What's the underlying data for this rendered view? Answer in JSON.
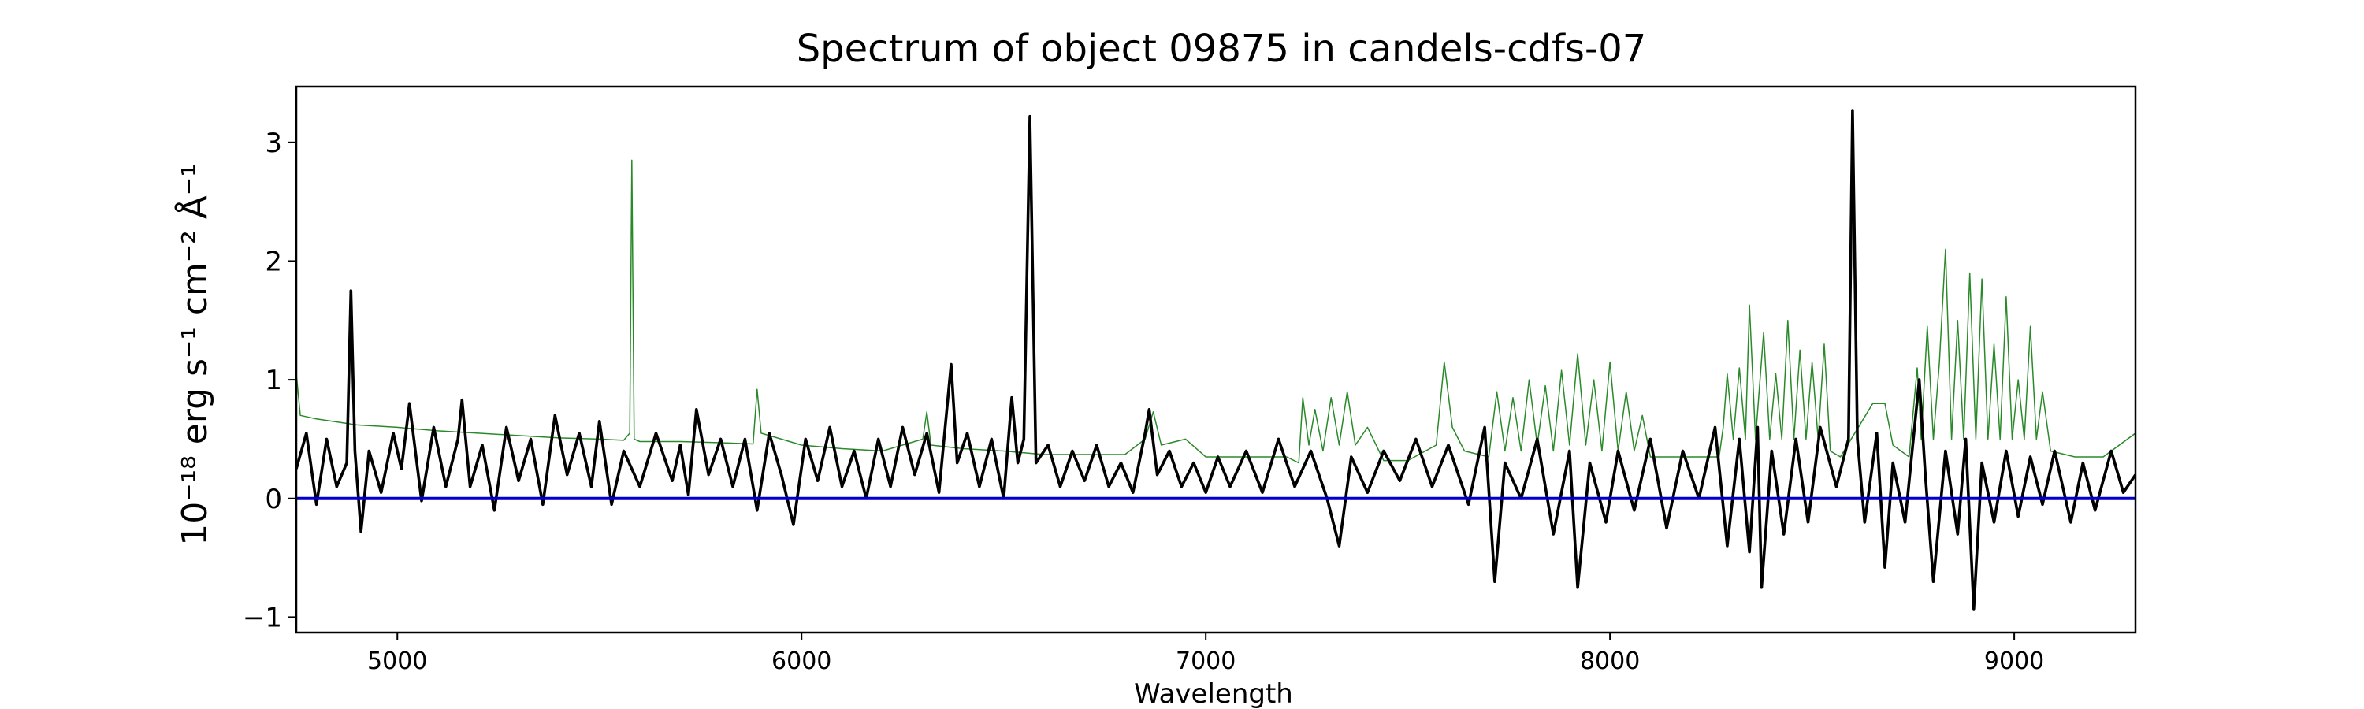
{
  "chart_data": {
    "type": "line",
    "title": "Spectrum of object 09875 in candels-cdfs-07",
    "xlabel": "Wavelength",
    "ylabel": "10⁻¹⁸ erg s⁻¹ cm⁻² Å⁻¹",
    "xlim": [
      4750,
      9300
    ],
    "ylim": [
      -1.13,
      3.47
    ],
    "x_ticks": [
      5000,
      6000,
      7000,
      8000,
      9000
    ],
    "y_ticks": [
      -1,
      0,
      1,
      2,
      3
    ],
    "grid": false,
    "legend": "none",
    "series": [
      {
        "color": "#000000",
        "points": [
          [
            4750,
            0.25
          ],
          [
            4775,
            0.55
          ],
          [
            4800,
            -0.05
          ],
          [
            4825,
            0.5
          ],
          [
            4850,
            0.1
          ],
          [
            4875,
            0.3
          ],
          [
            4885,
            1.75
          ],
          [
            4895,
            0.4
          ],
          [
            4910,
            -0.28
          ],
          [
            4930,
            0.4
          ],
          [
            4960,
            0.05
          ],
          [
            4990,
            0.55
          ],
          [
            5010,
            0.25
          ],
          [
            5030,
            0.8
          ],
          [
            5060,
            -0.02
          ],
          [
            5090,
            0.6
          ],
          [
            5120,
            0.1
          ],
          [
            5150,
            0.5
          ],
          [
            5160,
            0.83
          ],
          [
            5180,
            0.1
          ],
          [
            5210,
            0.45
          ],
          [
            5240,
            -0.1
          ],
          [
            5270,
            0.6
          ],
          [
            5300,
            0.15
          ],
          [
            5330,
            0.5
          ],
          [
            5360,
            -0.05
          ],
          [
            5390,
            0.7
          ],
          [
            5420,
            0.2
          ],
          [
            5450,
            0.55
          ],
          [
            5480,
            0.1
          ],
          [
            5500,
            0.65
          ],
          [
            5530,
            -0.05
          ],
          [
            5560,
            0.4
          ],
          [
            5600,
            0.1
          ],
          [
            5640,
            0.55
          ],
          [
            5680,
            0.15
          ],
          [
            5700,
            0.45
          ],
          [
            5720,
            0.03
          ],
          [
            5740,
            0.75
          ],
          [
            5770,
            0.2
          ],
          [
            5800,
            0.5
          ],
          [
            5830,
            0.1
          ],
          [
            5860,
            0.5
          ],
          [
            5890,
            -0.1
          ],
          [
            5920,
            0.55
          ],
          [
            5950,
            0.2
          ],
          [
            5980,
            -0.22
          ],
          [
            6010,
            0.5
          ],
          [
            6040,
            0.15
          ],
          [
            6070,
            0.6
          ],
          [
            6100,
            0.1
          ],
          [
            6130,
            0.4
          ],
          [
            6160,
            0.0
          ],
          [
            6190,
            0.5
          ],
          [
            6220,
            0.1
          ],
          [
            6250,
            0.6
          ],
          [
            6280,
            0.2
          ],
          [
            6310,
            0.55
          ],
          [
            6340,
            0.05
          ],
          [
            6370,
            1.13
          ],
          [
            6385,
            0.3
          ],
          [
            6410,
            0.55
          ],
          [
            6440,
            0.1
          ],
          [
            6470,
            0.5
          ],
          [
            6500,
            0.0
          ],
          [
            6520,
            0.85
          ],
          [
            6535,
            0.3
          ],
          [
            6550,
            0.5
          ],
          [
            6565,
            3.22
          ],
          [
            6580,
            0.3
          ],
          [
            6610,
            0.45
          ],
          [
            6640,
            0.1
          ],
          [
            6670,
            0.4
          ],
          [
            6700,
            0.15
          ],
          [
            6730,
            0.45
          ],
          [
            6760,
            0.1
          ],
          [
            6790,
            0.3
          ],
          [
            6820,
            0.05
          ],
          [
            6850,
            0.55
          ],
          [
            6860,
            0.75
          ],
          [
            6880,
            0.2
          ],
          [
            6910,
            0.4
          ],
          [
            6940,
            0.1
          ],
          [
            6970,
            0.3
          ],
          [
            7000,
            0.05
          ],
          [
            7030,
            0.35
          ],
          [
            7060,
            0.1
          ],
          [
            7100,
            0.4
          ],
          [
            7140,
            0.05
          ],
          [
            7180,
            0.5
          ],
          [
            7220,
            0.1
          ],
          [
            7260,
            0.4
          ],
          [
            7300,
            0.0
          ],
          [
            7330,
            -0.4
          ],
          [
            7360,
            0.35
          ],
          [
            7400,
            0.05
          ],
          [
            7440,
            0.4
          ],
          [
            7480,
            0.15
          ],
          [
            7520,
            0.5
          ],
          [
            7560,
            0.1
          ],
          [
            7600,
            0.45
          ],
          [
            7650,
            -0.05
          ],
          [
            7690,
            0.6
          ],
          [
            7715,
            -0.7
          ],
          [
            7740,
            0.3
          ],
          [
            7780,
            0.0
          ],
          [
            7820,
            0.5
          ],
          [
            7860,
            -0.3
          ],
          [
            7900,
            0.4
          ],
          [
            7920,
            -0.75
          ],
          [
            7950,
            0.3
          ],
          [
            7990,
            -0.2
          ],
          [
            8020,
            0.4
          ],
          [
            8060,
            -0.1
          ],
          [
            8100,
            0.5
          ],
          [
            8140,
            -0.25
          ],
          [
            8180,
            0.4
          ],
          [
            8220,
            0.0
          ],
          [
            8260,
            0.6
          ],
          [
            8290,
            -0.4
          ],
          [
            8320,
            0.5
          ],
          [
            8345,
            -0.45
          ],
          [
            8365,
            0.6
          ],
          [
            8375,
            -0.75
          ],
          [
            8400,
            0.4
          ],
          [
            8430,
            -0.3
          ],
          [
            8460,
            0.5
          ],
          [
            8490,
            -0.2
          ],
          [
            8520,
            0.6
          ],
          [
            8560,
            0.1
          ],
          [
            8590,
            0.5
          ],
          [
            8600,
            3.27
          ],
          [
            8612,
            0.5
          ],
          [
            8630,
            -0.2
          ],
          [
            8660,
            0.55
          ],
          [
            8680,
            -0.58
          ],
          [
            8700,
            0.3
          ],
          [
            8730,
            -0.2
          ],
          [
            8765,
            1.0
          ],
          [
            8780,
            0.2
          ],
          [
            8800,
            -0.7
          ],
          [
            8830,
            0.4
          ],
          [
            8860,
            -0.3
          ],
          [
            8880,
            0.5
          ],
          [
            8900,
            -0.93
          ],
          [
            8920,
            0.3
          ],
          [
            8950,
            -0.2
          ],
          [
            8980,
            0.4
          ],
          [
            9010,
            -0.15
          ],
          [
            9040,
            0.35
          ],
          [
            9070,
            -0.05
          ],
          [
            9100,
            0.4
          ],
          [
            9140,
            -0.2
          ],
          [
            9170,
            0.3
          ],
          [
            9200,
            -0.1
          ],
          [
            9240,
            0.4
          ],
          [
            9270,
            0.05
          ],
          [
            9300,
            0.2
          ]
        ]
      },
      {
        "color": "#2a8a2a",
        "points": [
          [
            4750,
            1.05
          ],
          [
            4760,
            0.7
          ],
          [
            4800,
            0.67
          ],
          [
            4900,
            0.62
          ],
          [
            5000,
            0.6
          ],
          [
            5100,
            0.57
          ],
          [
            5200,
            0.55
          ],
          [
            5300,
            0.53
          ],
          [
            5400,
            0.51
          ],
          [
            5500,
            0.5
          ],
          [
            5560,
            0.49
          ],
          [
            5575,
            0.55
          ],
          [
            5580,
            2.85
          ],
          [
            5586,
            0.5
          ],
          [
            5600,
            0.48
          ],
          [
            5700,
            0.48
          ],
          [
            5800,
            0.47
          ],
          [
            5880,
            0.46
          ],
          [
            5890,
            0.92
          ],
          [
            5900,
            0.55
          ],
          [
            5950,
            0.5
          ],
          [
            6000,
            0.45
          ],
          [
            6100,
            0.42
          ],
          [
            6200,
            0.4
          ],
          [
            6300,
            0.5
          ],
          [
            6310,
            0.73
          ],
          [
            6320,
            0.45
          ],
          [
            6400,
            0.42
          ],
          [
            6500,
            0.4
          ],
          [
            6600,
            0.37
          ],
          [
            6700,
            0.37
          ],
          [
            6800,
            0.37
          ],
          [
            6850,
            0.5
          ],
          [
            6870,
            0.73
          ],
          [
            6890,
            0.45
          ],
          [
            6950,
            0.5
          ],
          [
            7000,
            0.35
          ],
          [
            7100,
            0.35
          ],
          [
            7200,
            0.35
          ],
          [
            7230,
            0.3
          ],
          [
            7240,
            0.85
          ],
          [
            7255,
            0.45
          ],
          [
            7270,
            0.75
          ],
          [
            7290,
            0.4
          ],
          [
            7310,
            0.85
          ],
          [
            7330,
            0.45
          ],
          [
            7350,
            0.9
          ],
          [
            7370,
            0.45
          ],
          [
            7400,
            0.6
          ],
          [
            7440,
            0.32
          ],
          [
            7500,
            0.32
          ],
          [
            7570,
            0.45
          ],
          [
            7590,
            1.15
          ],
          [
            7610,
            0.6
          ],
          [
            7640,
            0.4
          ],
          [
            7700,
            0.35
          ],
          [
            7720,
            0.9
          ],
          [
            7740,
            0.4
          ],
          [
            7760,
            0.85
          ],
          [
            7780,
            0.4
          ],
          [
            7800,
            1.0
          ],
          [
            7820,
            0.45
          ],
          [
            7840,
            0.95
          ],
          [
            7860,
            0.4
          ],
          [
            7880,
            1.08
          ],
          [
            7900,
            0.45
          ],
          [
            7920,
            1.22
          ],
          [
            7940,
            0.45
          ],
          [
            7960,
            1.0
          ],
          [
            7980,
            0.4
          ],
          [
            8000,
            1.15
          ],
          [
            8020,
            0.4
          ],
          [
            8040,
            0.9
          ],
          [
            8060,
            0.4
          ],
          [
            8080,
            0.7
          ],
          [
            8100,
            0.35
          ],
          [
            8200,
            0.35
          ],
          [
            8270,
            0.35
          ],
          [
            8280,
            0.6
          ],
          [
            8290,
            1.05
          ],
          [
            8305,
            0.5
          ],
          [
            8320,
            1.1
          ],
          [
            8335,
            0.5
          ],
          [
            8345,
            1.63
          ],
          [
            8360,
            0.5
          ],
          [
            8380,
            1.4
          ],
          [
            8395,
            0.5
          ],
          [
            8410,
            1.05
          ],
          [
            8425,
            0.5
          ],
          [
            8440,
            1.5
          ],
          [
            8455,
            0.5
          ],
          [
            8470,
            1.25
          ],
          [
            8485,
            0.5
          ],
          [
            8500,
            1.15
          ],
          [
            8515,
            0.5
          ],
          [
            8530,
            1.3
          ],
          [
            8545,
            0.4
          ],
          [
            8570,
            0.35
          ],
          [
            8650,
            0.8
          ],
          [
            8680,
            0.8
          ],
          [
            8700,
            0.45
          ],
          [
            8740,
            0.35
          ],
          [
            8760,
            1.1
          ],
          [
            8770,
            0.5
          ],
          [
            8785,
            1.45
          ],
          [
            8800,
            0.5
          ],
          [
            8815,
            1.15
          ],
          [
            8830,
            2.1
          ],
          [
            8845,
            0.5
          ],
          [
            8860,
            1.5
          ],
          [
            8875,
            0.5
          ],
          [
            8890,
            1.9
          ],
          [
            8905,
            0.5
          ],
          [
            8920,
            1.85
          ],
          [
            8935,
            0.5
          ],
          [
            8950,
            1.3
          ],
          [
            8965,
            0.5
          ],
          [
            8980,
            1.7
          ],
          [
            8995,
            0.5
          ],
          [
            9010,
            1.0
          ],
          [
            9025,
            0.5
          ],
          [
            9040,
            1.45
          ],
          [
            9055,
            0.5
          ],
          [
            9070,
            0.9
          ],
          [
            9090,
            0.4
          ],
          [
            9150,
            0.35
          ],
          [
            9220,
            0.35
          ],
          [
            9300,
            0.55
          ]
        ]
      },
      {
        "color": "#0000cc",
        "points": [
          [
            4750,
            0.0
          ],
          [
            9300,
            0.0
          ]
        ]
      }
    ]
  }
}
